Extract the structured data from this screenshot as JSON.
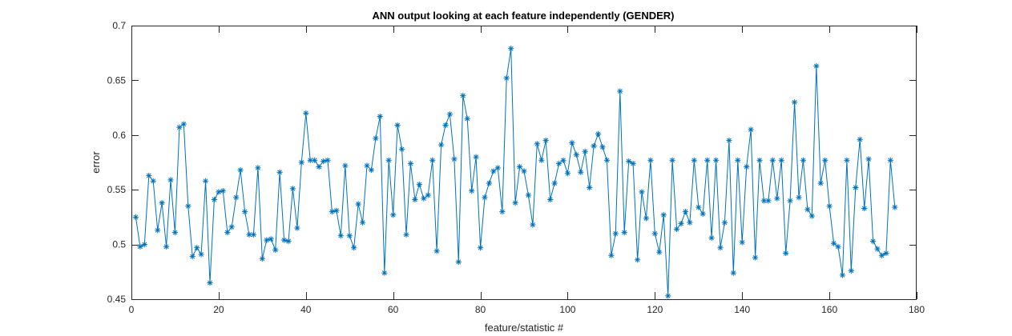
{
  "chart_data": {
    "type": "line",
    "title": "ANN output looking at each feature independently (GENDER)",
    "xlabel": "feature/statistic #",
    "ylabel": "error",
    "xlim": [
      0,
      180
    ],
    "ylim": [
      0.45,
      0.7
    ],
    "xticks": [
      0,
      20,
      40,
      60,
      80,
      100,
      120,
      140,
      160,
      180
    ],
    "yticks": [
      0.45,
      0.5,
      0.55,
      0.6,
      0.65,
      0.7
    ],
    "xtick_labels": [
      "0",
      "20",
      "40",
      "60",
      "80",
      "100",
      "120",
      "140",
      "160",
      "180"
    ],
    "ytick_labels": [
      "0.45",
      "0.5",
      "0.55",
      "0.6",
      "0.65",
      "0.7"
    ],
    "grid": false,
    "marker": "asterisk",
    "series_color": "#0072BD",
    "series": [
      {
        "x": [
          1,
          2,
          3,
          4,
          5,
          6,
          7,
          8,
          9,
          10,
          11,
          12,
          13,
          14,
          15,
          16,
          17,
          18,
          19,
          20,
          21,
          22,
          23,
          24,
          25,
          26,
          27,
          28,
          29,
          30,
          31,
          32,
          33,
          34,
          35,
          36,
          37,
          38,
          39,
          40,
          41,
          42,
          43,
          44,
          45,
          46,
          47,
          48,
          49,
          50,
          51,
          52,
          53,
          54,
          55,
          56,
          57,
          58,
          59,
          60,
          61,
          62,
          63,
          64,
          65,
          66,
          67,
          68,
          69,
          70,
          71,
          72,
          73,
          74,
          75,
          76,
          77,
          78,
          79,
          80,
          81,
          82,
          83,
          84,
          85,
          86,
          87,
          88,
          89,
          90,
          91,
          92,
          93,
          94,
          95,
          96,
          97,
          98,
          99,
          100,
          101,
          102,
          103,
          104,
          105,
          106,
          107,
          108,
          109,
          110,
          111,
          112,
          113,
          114,
          115,
          116,
          117,
          118,
          119,
          120,
          121,
          122,
          123,
          124,
          125,
          126,
          127,
          128,
          129,
          130,
          131,
          132,
          133,
          134,
          135,
          136,
          137,
          138,
          139,
          140,
          141,
          142,
          143,
          144,
          145,
          146,
          147,
          148,
          149,
          150,
          151,
          152,
          153,
          154,
          155,
          156,
          157,
          158,
          159,
          160,
          161,
          162,
          163,
          164,
          165,
          166,
          167,
          168,
          169,
          170,
          171,
          172,
          173,
          174,
          175
        ],
        "values": [
          0.525,
          0.498,
          0.5,
          0.563,
          0.558,
          0.513,
          0.538,
          0.498,
          0.559,
          0.511,
          0.607,
          0.61,
          0.535,
          0.489,
          0.497,
          0.491,
          0.558,
          0.465,
          0.541,
          0.548,
          0.549,
          0.511,
          0.516,
          0.543,
          0.568,
          0.53,
          0.509,
          0.509,
          0.57,
          0.487,
          0.504,
          0.505,
          0.495,
          0.566,
          0.504,
          0.503,
          0.551,
          0.515,
          0.575,
          0.62,
          0.577,
          0.577,
          0.571,
          0.576,
          0.577,
          0.53,
          0.531,
          0.508,
          0.572,
          0.508,
          0.497,
          0.537,
          0.52,
          0.572,
          0.568,
          0.597,
          0.617,
          0.474,
          0.577,
          0.527,
          0.609,
          0.587,
          0.509,
          0.574,
          0.541,
          0.555,
          0.542,
          0.545,
          0.577,
          0.494,
          0.591,
          0.609,
          0.619,
          0.578,
          0.484,
          0.636,
          0.615,
          0.549,
          0.58,
          0.497,
          0.543,
          0.556,
          0.567,
          0.57,
          0.53,
          0.652,
          0.679,
          0.538,
          0.571,
          0.567,
          0.545,
          0.518,
          0.592,
          0.577,
          0.595,
          0.541,
          0.556,
          0.574,
          0.577,
          0.565,
          0.593,
          0.582,
          0.566,
          0.585,
          0.552,
          0.59,
          0.601,
          0.589,
          0.577,
          0.49,
          0.51,
          0.64,
          0.511,
          0.576,
          0.574,
          0.486,
          0.548,
          0.524,
          0.577,
          0.51,
          0.493,
          0.527,
          0.453,
          0.577,
          0.514,
          0.519,
          0.53,
          0.52,
          0.577,
          0.534,
          0.528,
          0.577,
          0.506,
          0.577,
          0.497,
          0.52,
          0.595,
          0.474,
          0.577,
          0.502,
          0.571,
          0.605,
          0.488,
          0.577,
          0.54,
          0.54,
          0.577,
          0.542,
          0.577,
          0.492,
          0.54,
          0.63,
          0.543,
          0.577,
          0.532,
          0.526,
          0.663,
          0.556,
          0.577,
          0.535,
          0.501,
          0.498,
          0.472,
          0.577,
          0.476,
          0.552,
          0.596,
          0.533,
          0.578,
          0.503,
          0.496,
          0.49,
          0.492,
          0.577,
          0.534
        ]
      }
    ]
  }
}
